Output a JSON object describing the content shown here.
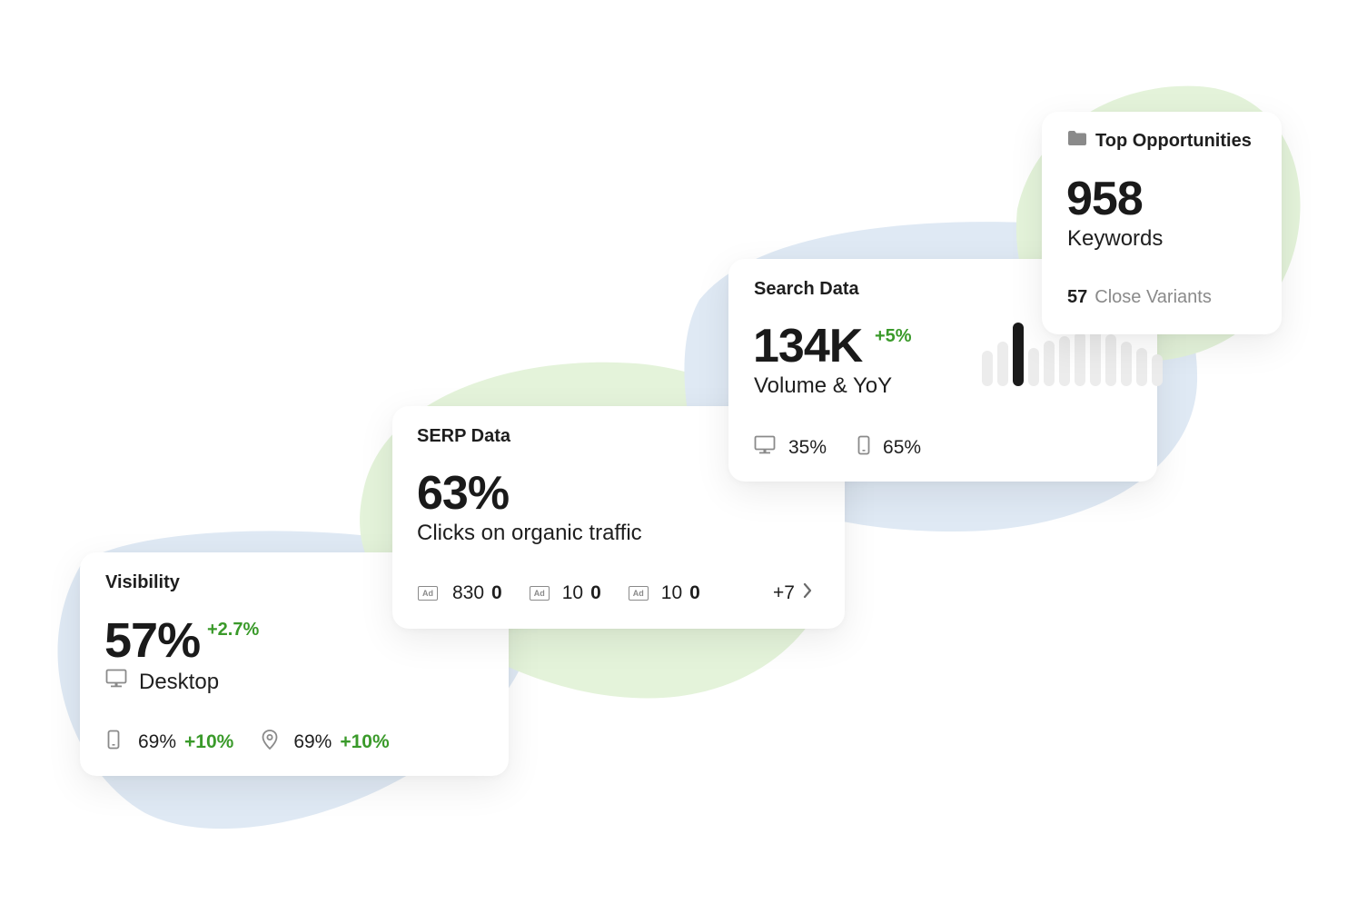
{
  "visibility": {
    "title": "Visibility",
    "value": "57%",
    "delta": "+2.7%",
    "device_label": "Desktop",
    "mobile_value": "69%",
    "mobile_delta": "+10%",
    "local_value": "69%",
    "local_delta": "+10%"
  },
  "serp": {
    "title": "SERP Data",
    "value": "63%",
    "subtitle": "Clicks on organic traffic",
    "features": [
      {
        "icon": "ad-icon",
        "badge": "Ad",
        "value": "830",
        "extra": "0"
      },
      {
        "icon": "ad-icon",
        "badge": "Ad",
        "value": "10",
        "extra": "0"
      },
      {
        "icon": "ad-icon",
        "badge": "Ad",
        "value": "10",
        "extra": "0"
      }
    ],
    "more_label": "+7"
  },
  "search": {
    "title": "Search Data",
    "value": "134K",
    "delta": "+5%",
    "subtitle": "Volume & YoY",
    "desktop_share": "35%",
    "mobile_share": "65%",
    "trend_bars": [
      {
        "level": 0.55,
        "active": false
      },
      {
        "level": 0.7,
        "active": false
      },
      {
        "level": 1.0,
        "active": true
      },
      {
        "level": 0.6,
        "active": false
      },
      {
        "level": 0.72,
        "active": false
      },
      {
        "level": 0.78,
        "active": false
      },
      {
        "level": 0.85,
        "active": false
      },
      {
        "level": 0.9,
        "active": false
      },
      {
        "level": 0.82,
        "active": false
      },
      {
        "level": 0.7,
        "active": false
      },
      {
        "level": 0.6,
        "active": false
      },
      {
        "level": 0.5,
        "active": false
      }
    ]
  },
  "opportunities": {
    "title": "Top Opportunities",
    "value": "958",
    "unit_label": "Keywords",
    "variants_count": "57",
    "variants_label": "Close Variants"
  },
  "colors": {
    "accent_green": "#3a9a2a",
    "blob_blue": "#dce8f3",
    "blob_green": "#e3f3d9"
  }
}
